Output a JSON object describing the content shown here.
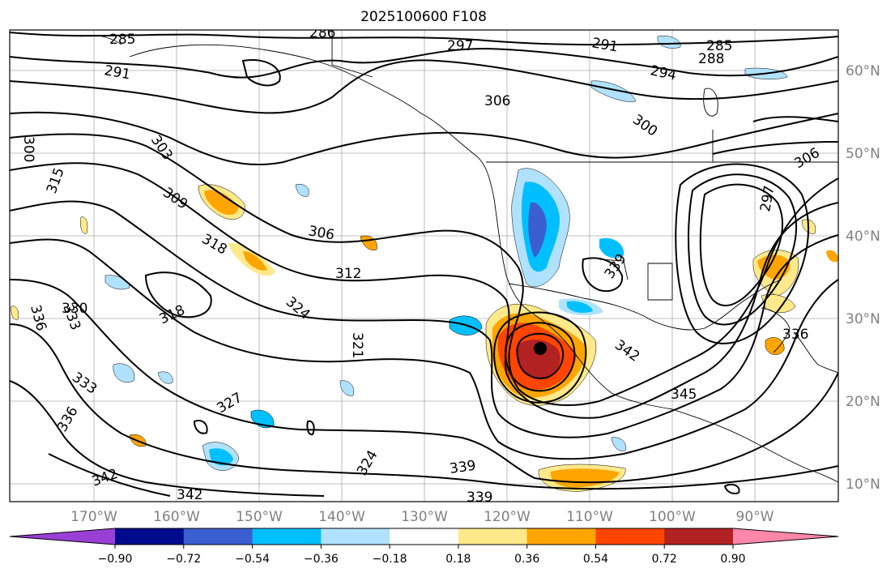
{
  "title": "2025100600 F108",
  "longitude_labels": [
    "170°W",
    "160°W",
    "150°W",
    "140°W",
    "130°W",
    "120°W",
    "110°W",
    "100°W",
    "90°W"
  ],
  "latitude_labels": [
    "60°N",
    "50°N",
    "40°N",
    "30°N",
    "20°N",
    "10°N"
  ],
  "colorbar": {
    "ticks": [
      "−0.90",
      "−0.72",
      "−0.54",
      "−0.36",
      "−0.18",
      "0.18",
      "0.36",
      "0.54",
      "0.72",
      "0.90"
    ],
    "colors": [
      "#9a3fd6",
      "#000a8c",
      "#3a5fd0",
      "#00bfff",
      "#b0e2ff",
      "#ffffff",
      "#ffe98a",
      "#ffa500",
      "#ff4500",
      "#b22222",
      "#ff88aa"
    ]
  },
  "contour_labels": [
    "285",
    "286",
    "297",
    "291",
    "285",
    "288",
    "291",
    "294",
    "306",
    "300",
    "300",
    "306",
    "303",
    "315",
    "309",
    "318",
    "306",
    "312",
    "330",
    "318",
    "324",
    "336",
    "333",
    "321",
    "339",
    "342",
    "333",
    "336",
    "327",
    "345",
    "336",
    "324",
    "342",
    "339",
    "342",
    "339",
    "297"
  ],
  "center_marker": "low-center-dot"
}
